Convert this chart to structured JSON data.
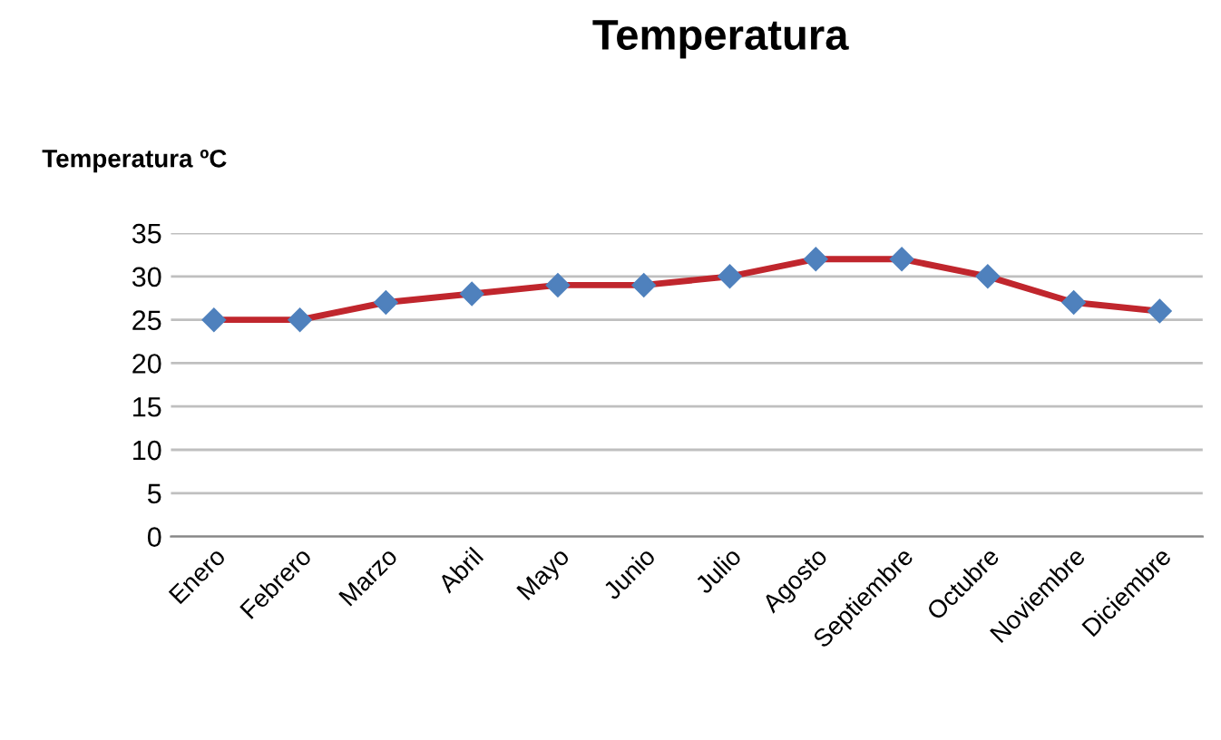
{
  "chart_data": {
    "type": "line",
    "title": "Temperatura",
    "ylabel": "Temperatura ºC",
    "categories": [
      "Enero",
      "Febrero",
      "Marzo",
      "Abril",
      "Mayo",
      "Junio",
      "Julio",
      "Agosto",
      "Septiembre",
      "Octubre",
      "Noviembre",
      "Diciembre"
    ],
    "series": [
      {
        "color": "#c0262d",
        "values": [
          25,
          25,
          27,
          28,
          29,
          29,
          30,
          32,
          32,
          30,
          27,
          26
        ]
      }
    ],
    "ylim": [
      0,
      35
    ],
    "yticks": [
      0,
      5,
      10,
      15,
      20,
      25,
      30,
      35
    ],
    "grid": "y",
    "marker": "diamond",
    "line_style": "solid"
  }
}
